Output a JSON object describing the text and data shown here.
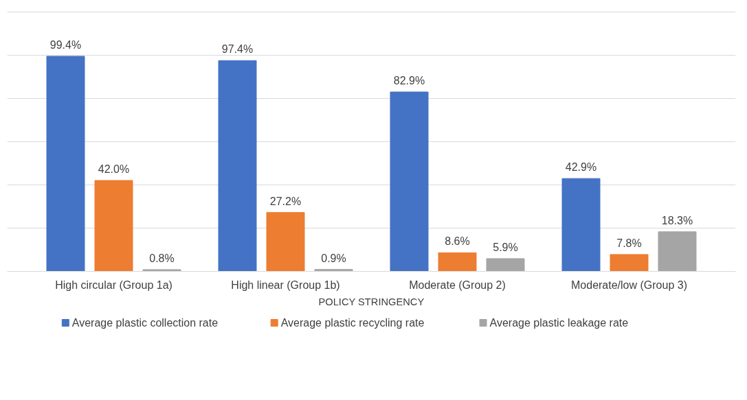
{
  "chart_data": {
    "type": "bar",
    "xlabel": "POLICY STRINGENCY",
    "categories": [
      "High circular (Group 1a)",
      "High linear (Group 1b)",
      "Moderate (Group 2)",
      "Moderate/low (Group 3)"
    ],
    "series": [
      {
        "name": "Average plastic collection rate",
        "color": "#4472c4",
        "values": [
          99.4,
          97.4,
          82.9,
          42.9
        ],
        "value_labels": [
          "99.4%",
          "97.4%",
          "82.9%",
          "42.9%"
        ]
      },
      {
        "name": "Average plastic recycling rate",
        "color": "#ed7d31",
        "values": [
          42.0,
          27.2,
          8.6,
          7.8
        ],
        "value_labels": [
          "42.0%",
          "27.2%",
          "8.6%",
          "7.8%"
        ]
      },
      {
        "name": "Average plastic leakage rate",
        "color": "#a5a5a5",
        "values": [
          0.8,
          0.9,
          5.9,
          18.3
        ],
        "value_labels": [
          "0.8%",
          "0.9%",
          "5.9%",
          "18.3%"
        ]
      }
    ],
    "yticks": [
      {
        "value": 0,
        "label": null
      },
      {
        "value": 20,
        "label": null
      },
      {
        "value": 40,
        "label": null
      },
      {
        "value": 60,
        "label": null
      },
      {
        "value": 80,
        "label": null
      },
      {
        "value": 100,
        "label": null
      },
      {
        "value": 120,
        "label": null
      }
    ],
    "grid": "y",
    "legend": "bottom",
    "tick_labels": "x"
  }
}
